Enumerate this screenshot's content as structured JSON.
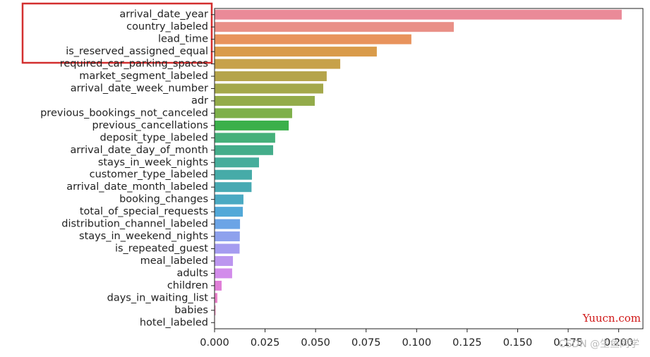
{
  "chart_data": {
    "type": "barh",
    "categories": [
      "arrival_date_year",
      "country_labeled",
      "lead_time",
      "is_reserved_assigned_equal",
      "required_car_parking_spaces",
      "market_segment_labeled",
      "arrival_date_week_number",
      "adr",
      "previous_bookings_not_canceled",
      "previous_cancellations",
      "deposit_type_labeled",
      "arrival_date_day_of_month",
      "stays_in_week_nights",
      "customer_type_labeled",
      "arrival_date_month_labeled",
      "booking_changes",
      "total_of_special_requests",
      "distribution_channel_labeled",
      "stays_in_weekend_nights",
      "is_repeated_guest",
      "meal_labeled",
      "adults",
      "children",
      "days_in_waiting_list",
      "babies",
      "hotel_labeled"
    ],
    "values": [
      0.2015,
      0.1184,
      0.0974,
      0.0803,
      0.0622,
      0.0555,
      0.0538,
      0.0496,
      0.0384,
      0.0367,
      0.03,
      0.029,
      0.022,
      0.0185,
      0.0183,
      0.0143,
      0.014,
      0.0126,
      0.0125,
      0.0124,
      0.0091,
      0.0087,
      0.0035,
      0.0014,
      0.0005,
      0.0002
    ],
    "colors": [
      "#ea8a98",
      "#e99087",
      "#e8935c",
      "#d99b4a",
      "#c7a14a",
      "#b5a44a",
      "#a4a84a",
      "#93ab4a",
      "#7eb04a",
      "#3bb04a",
      "#45b07a",
      "#44ad8a",
      "#46ad9b",
      "#46aba8",
      "#48aab3",
      "#4aa9c2",
      "#52a8d8",
      "#6ba4e6",
      "#8ea1ed",
      "#a59cf0",
      "#bc96ef",
      "#d28ceb",
      "#e07fd8",
      "#e880c8",
      "#ea84b5",
      "#ec87a8"
    ],
    "xlim": [
      0,
      0.212
    ],
    "xticks": [
      {
        "value": 0,
        "label": "0.000"
      },
      {
        "value": 0.025,
        "label": "0.025"
      },
      {
        "value": 0.05,
        "label": "0.050"
      },
      {
        "value": 0.075,
        "label": "0.075"
      },
      {
        "value": 0.1,
        "label": "0.100"
      },
      {
        "value": 0.125,
        "label": "0.125"
      },
      {
        "value": 0.15,
        "label": "0.150"
      },
      {
        "value": 0.175,
        "label": "0.175"
      },
      {
        "value": 0.2,
        "label": "0.200"
      }
    ],
    "watermarks": [
      "Yuucn.com",
      "CSDN @生鱼同学"
    ]
  }
}
